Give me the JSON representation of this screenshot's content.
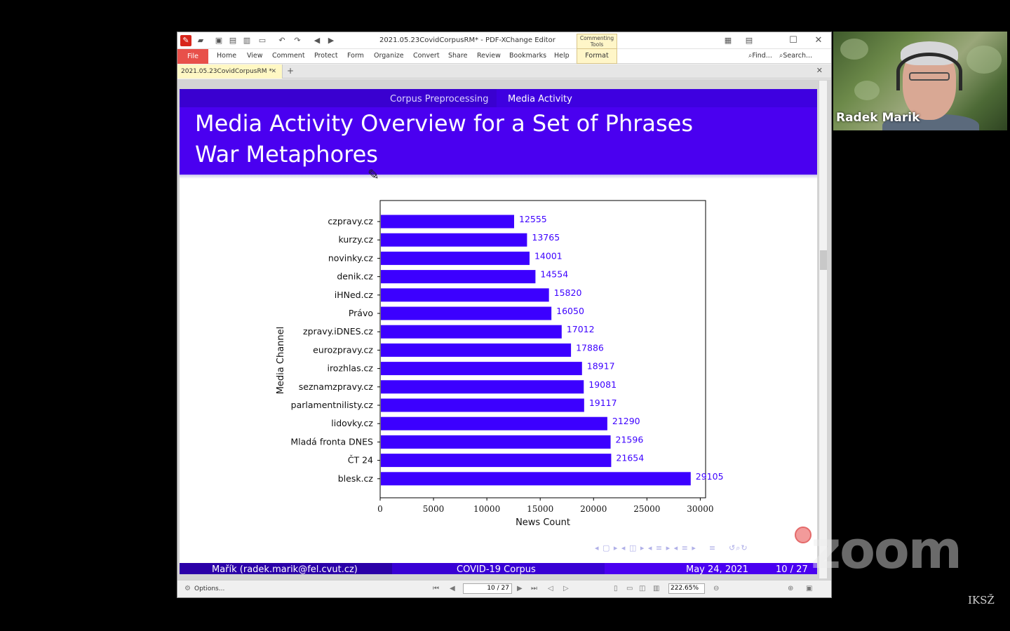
{
  "app": {
    "window_title": "2021.05.23CovidCorpusRM* - PDF-XChange Editor",
    "ctx_tools_label": "Commenting Tools",
    "menu": [
      "File",
      "Home",
      "View",
      "Comment",
      "Protect",
      "Form",
      "Organize",
      "Convert",
      "Share",
      "Review",
      "Bookmarks",
      "Help",
      "Format"
    ],
    "find_label": "Find...",
    "search_label": "Search...",
    "doc_tab": "2021.05.23CovidCorpusRM *"
  },
  "status": {
    "options_label": "Options...",
    "page_value": "10 / 27",
    "zoom_value": "222.65%"
  },
  "slide": {
    "nav_sections": [
      "Corpus Preprocessing",
      "Media Activity"
    ],
    "title_line1": "Media Activity Overview for a Set of Phrases",
    "title_line2": "War Metaphores",
    "footer_author": "Mařík  (radek.marik@fel.cvut.cz)",
    "footer_title": "COVID-19 Corpus",
    "footer_date": "May 24, 2021",
    "footer_page": "10 / 27"
  },
  "chart_data": {
    "type": "bar",
    "orientation": "horizontal",
    "xlabel": "News Count",
    "ylabel": "Media Channel",
    "xlim": [
      0,
      30500
    ],
    "xticks": [
      0,
      5000,
      10000,
      15000,
      20000,
      25000,
      30000
    ],
    "color": "#3c00ff",
    "categories": [
      "czpravy.cz",
      "kurzy.cz",
      "novinky.cz",
      "denik.cz",
      "iHNed.cz",
      "Právo",
      "zpravy.iDNES.cz",
      "eurozpravy.cz",
      "irozhlas.cz",
      "seznamzpravy.cz",
      "parlamentnilisty.cz",
      "lidovky.cz",
      "Mladá fronta DNES",
      "ČT 24",
      "blesk.cz"
    ],
    "values": [
      12555,
      13765,
      14001,
      14554,
      15820,
      16050,
      17012,
      17886,
      18917,
      19081,
      19117,
      21290,
      21596,
      21654,
      29105
    ]
  },
  "webcam": {
    "name": "Radek Marik"
  },
  "overlay": {
    "zoom_logo": "zoom",
    "corner_label": "IKSŽ"
  }
}
